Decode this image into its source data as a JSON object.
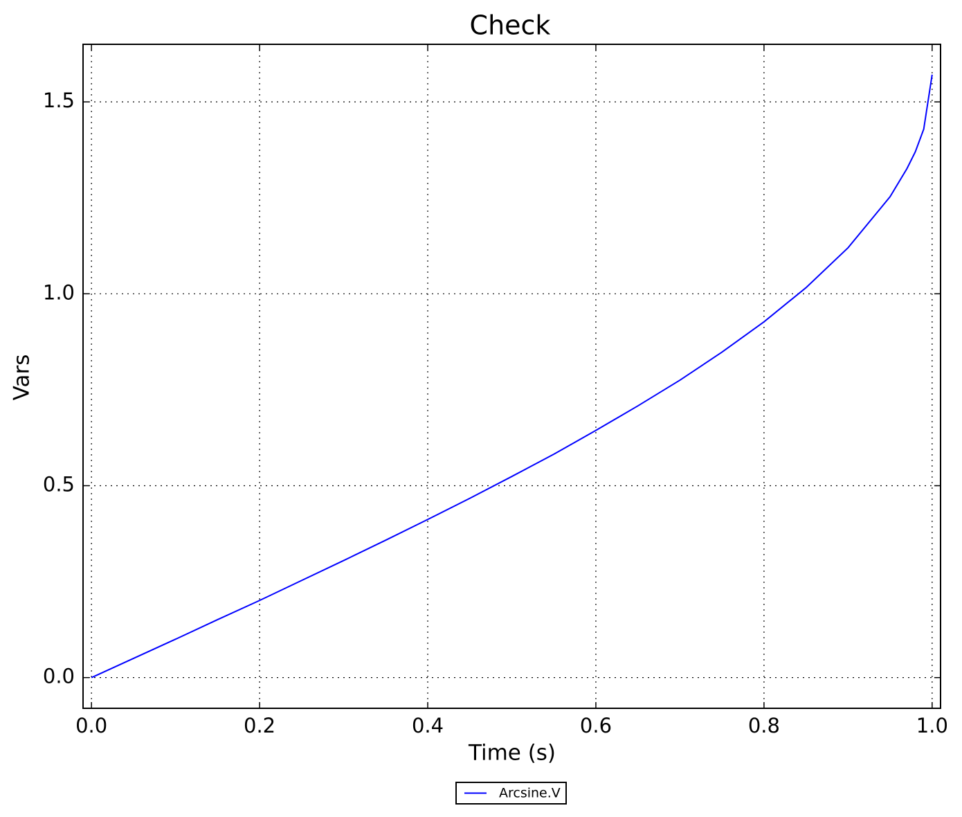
{
  "chart_data": {
    "type": "line",
    "title": "Check",
    "x_label": "Time (s)",
    "y_label": "Vars",
    "x": [
      0,
      0.05,
      0.1,
      0.15,
      0.2,
      0.25,
      0.3,
      0.35,
      0.4,
      0.45,
      0.5,
      0.55,
      0.6,
      0.65,
      0.7,
      0.75,
      0.8,
      0.85,
      0.9,
      0.95,
      0.97,
      0.98,
      0.99,
      1.0
    ],
    "series": [
      {
        "name": "Arcsine.V",
        "color": "#0000ff",
        "values": [
          0,
          0.05,
          0.1,
          0.151,
          0.201,
          0.253,
          0.305,
          0.358,
          0.412,
          0.467,
          0.524,
          0.582,
          0.644,
          0.708,
          0.775,
          0.848,
          0.927,
          1.016,
          1.12,
          1.253,
          1.326,
          1.37,
          1.429,
          1.571
        ]
      }
    ],
    "xlim": [
      -0.01,
      1.01
    ],
    "ylim": [
      -0.08,
      1.65
    ],
    "xticks": [
      {
        "value": 0,
        "label": "0.0"
      },
      0.2,
      0.4,
      0.6,
      0.8,
      {
        "value": 1,
        "label": "1.0"
      }
    ],
    "yticks": [
      {
        "value": 0,
        "label": "0.0"
      },
      0.5,
      {
        "value": 1,
        "label": "1.0"
      },
      1.5
    ],
    "grid": true,
    "legend": "below"
  }
}
